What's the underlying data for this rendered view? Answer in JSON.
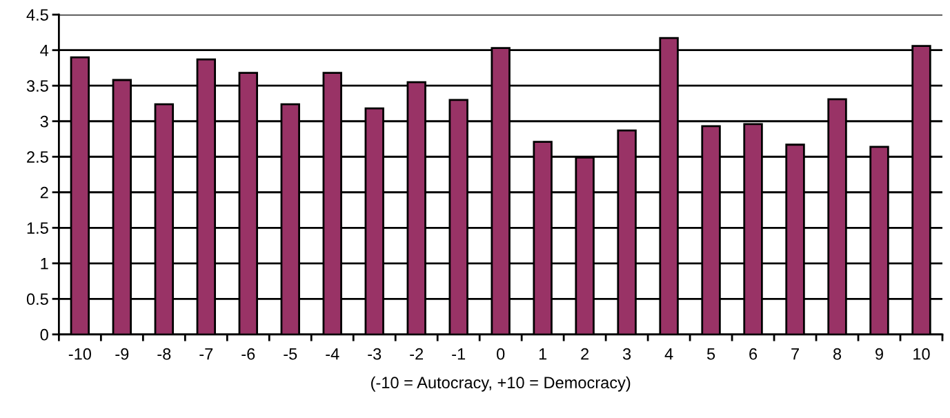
{
  "chart_data": {
    "type": "bar",
    "categories": [
      "-10",
      "-9",
      "-8",
      "-7",
      "-6",
      "-5",
      "-4",
      "-3",
      "-2",
      "-1",
      "0",
      "1",
      "2",
      "3",
      "4",
      "5",
      "6",
      "7",
      "8",
      "9",
      "10"
    ],
    "values": [
      3.9,
      3.58,
      3.24,
      3.87,
      3.68,
      3.24,
      3.68,
      3.18,
      3.55,
      3.3,
      4.03,
      2.71,
      2.49,
      2.87,
      4.17,
      2.93,
      2.96,
      2.67,
      3.31,
      2.64,
      4.06
    ],
    "color": "#993366",
    "xlabel": "(-10 = Autocracy, +10 = Democracy)",
    "ylim": [
      0,
      4.5
    ],
    "yticks": [
      0,
      0.5,
      1,
      1.5,
      2,
      2.5,
      3,
      3.5,
      4,
      4.5
    ],
    "grid": "y",
    "legend": false
  }
}
